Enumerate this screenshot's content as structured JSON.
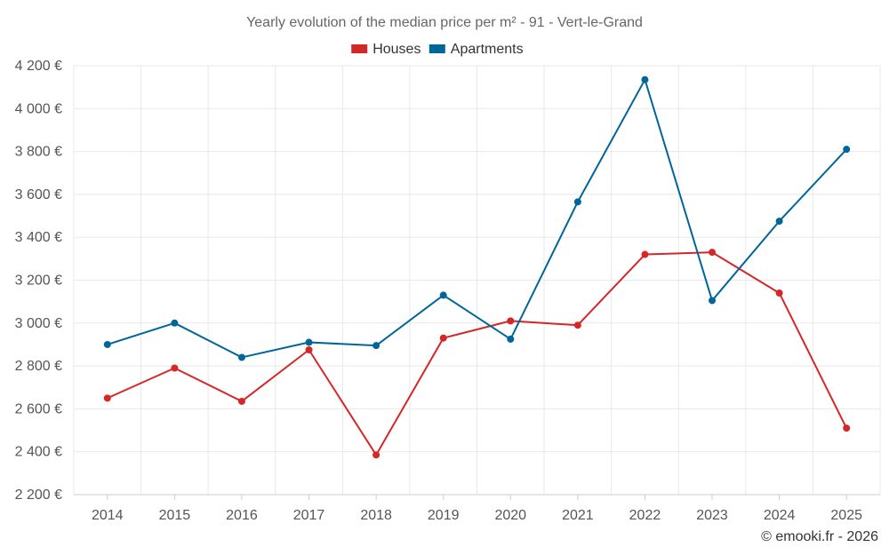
{
  "chart_data": {
    "type": "line",
    "title": "Yearly evolution of the median price per m² - 91 - Vert-le-Grand",
    "categories": [
      "2014",
      "2015",
      "2016",
      "2017",
      "2018",
      "2019",
      "2020",
      "2021",
      "2022",
      "2023",
      "2024",
      "2025"
    ],
    "series": [
      {
        "name": "Houses",
        "color": "#d62728",
        "values": [
          2650,
          2790,
          2635,
          2875,
          2385,
          2930,
          3010,
          2990,
          3320,
          3330,
          3140,
          2510
        ]
      },
      {
        "name": "Apartments",
        "color": "#006699",
        "values": [
          2900,
          3000,
          2840,
          2910,
          2895,
          3130,
          2925,
          3565,
          4135,
          3105,
          3475,
          3810
        ]
      }
    ],
    "ylim": [
      2200,
      4200
    ],
    "y_ticks": [
      2200,
      2400,
      2600,
      2800,
      3000,
      3200,
      3400,
      3600,
      3800,
      4000,
      4200
    ],
    "y_tick_labels": [
      "2 200 €",
      "2 400 €",
      "2 600 €",
      "2 800 €",
      "3 000 €",
      "3 200 €",
      "3 400 €",
      "3 600 €",
      "3 800 €",
      "4 000 €",
      "4 200 €"
    ],
    "xlabel": "",
    "ylabel": "",
    "grid": true,
    "legend_position": "top-center"
  },
  "credit": "© emooki.fr - 2026"
}
